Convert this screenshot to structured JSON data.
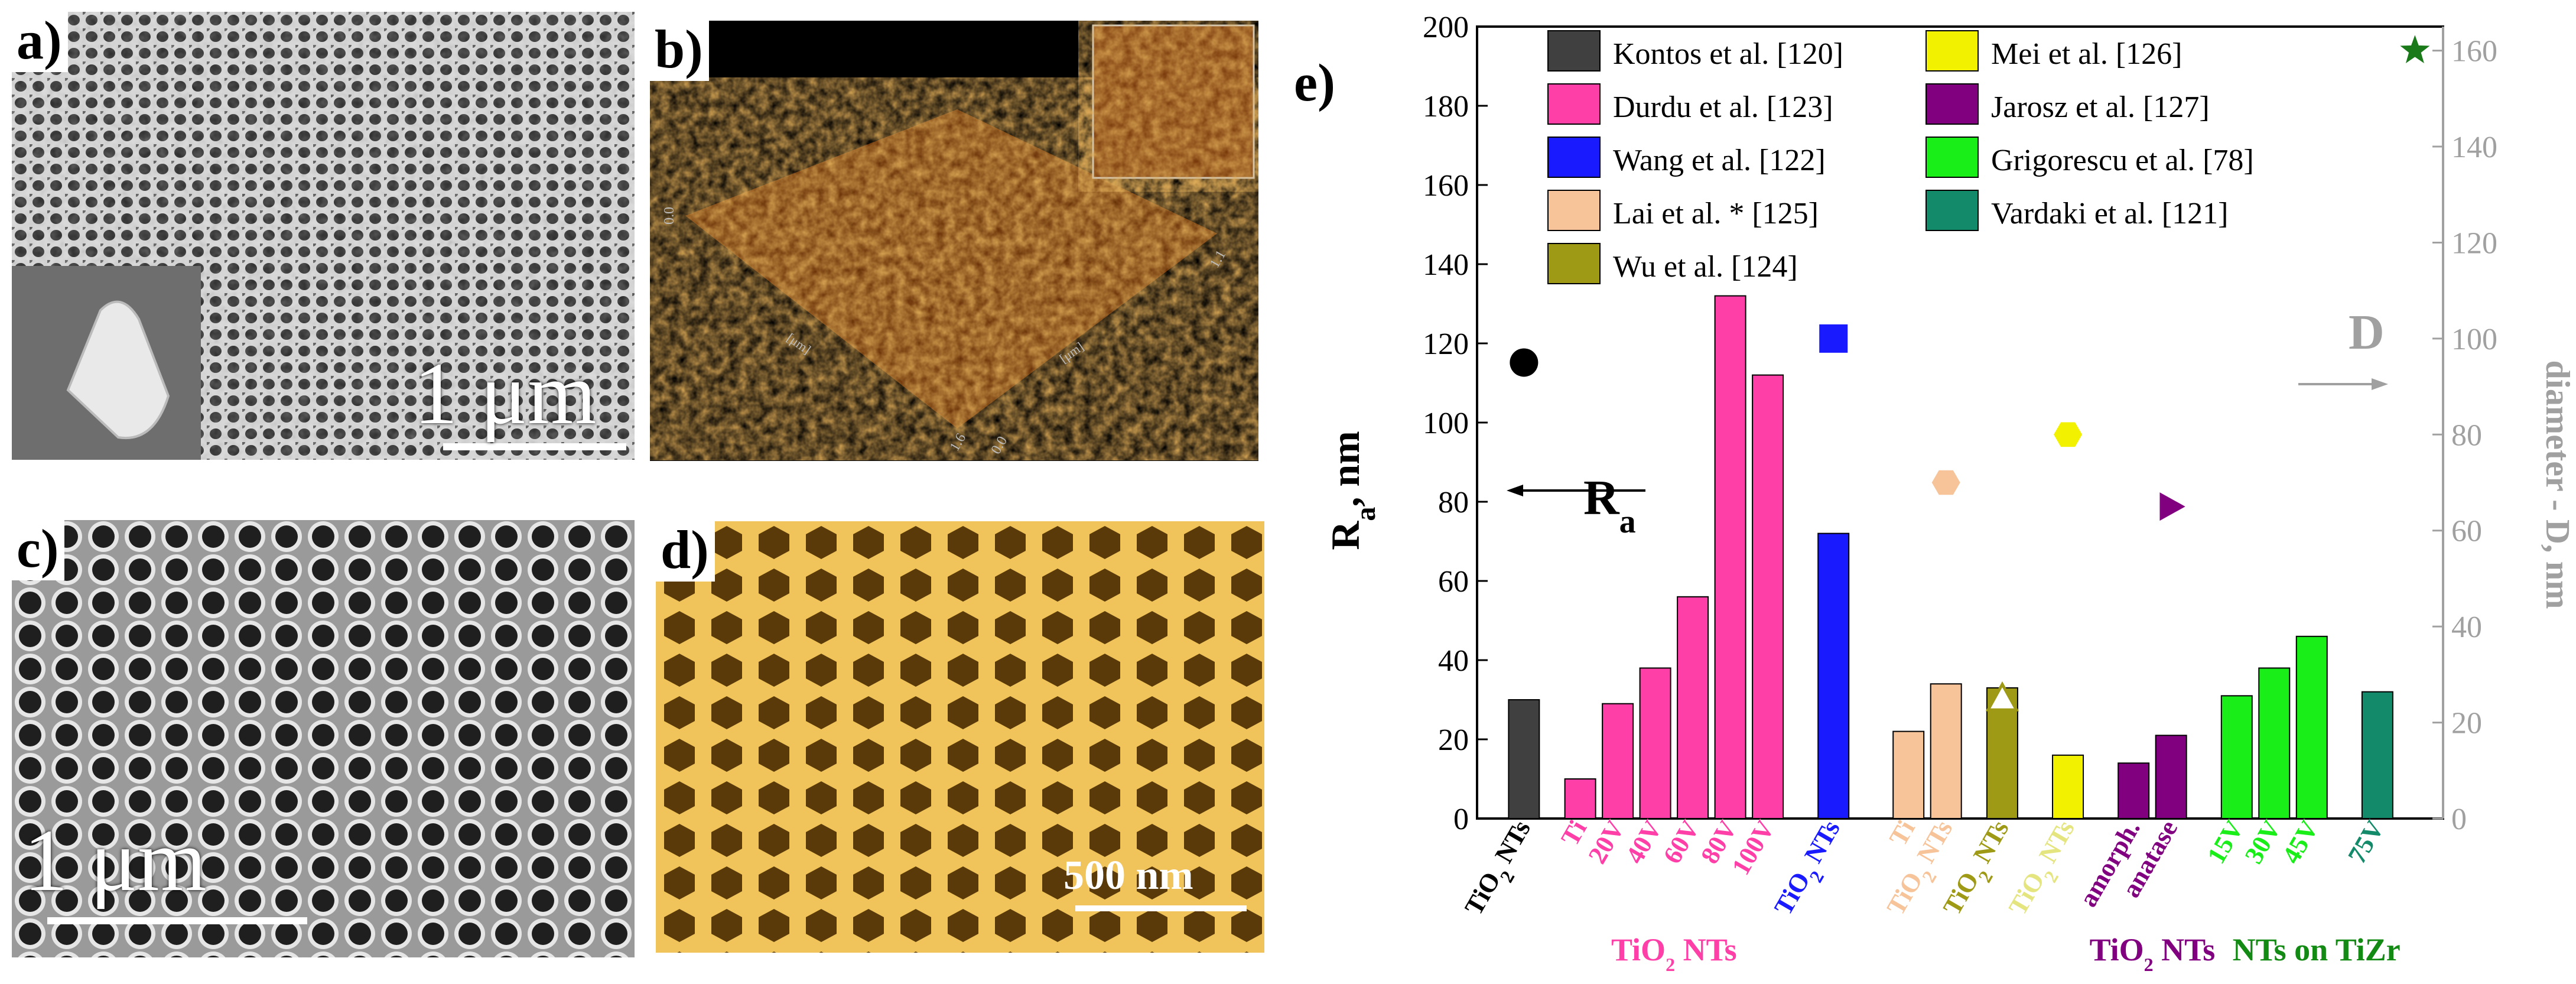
{
  "panels": {
    "a": {
      "label": "a)",
      "scale_text": "1 μm"
    },
    "b": {
      "label": "b)",
      "axis_ticks": [
        "0.0",
        "1.1",
        "1.6",
        "0.0"
      ],
      "axis_unit": "[μm]"
    },
    "c": {
      "label": "c)",
      "scale_text": "1 μm"
    },
    "d": {
      "label": "d)",
      "scale_text": "500 nm"
    }
  },
  "colors": {
    "kontos": "#404040",
    "durdu": "#ff3fa8",
    "wang": "#1a1aff",
    "lai": "#f7c49a",
    "wu": "#9e9a16",
    "mei": "#f2f200",
    "jarosz": "#800080",
    "grigorescu": "#19ee19",
    "vardaki": "#138a6a",
    "star": "#1a7a1a",
    "right_axis": "#a0a0a0"
  },
  "chart_data": {
    "type": "bar",
    "panel_label": "e)",
    "ylabel_left_main": "R",
    "ylabel_left_sub": "a",
    "ylabel_left_suffix": ", nm",
    "ylabel_right": "diameter - D, nm",
    "ylim_left": [
      0,
      200
    ],
    "ylim_right": [
      0,
      165
    ],
    "yticks_left": [
      0,
      20,
      40,
      60,
      80,
      100,
      120,
      140,
      160,
      180,
      200
    ],
    "yticks_right": [
      0,
      20,
      40,
      60,
      80,
      100,
      120,
      140,
      160
    ],
    "annotation_Ra_main": "R",
    "annotation_Ra_sub": "a",
    "annotation_D": "D",
    "legend": [
      {
        "label": "Kontos et al. [120]",
        "color": "#404040"
      },
      {
        "label": "Durdu et al. [123]",
        "color": "#ff3fa8"
      },
      {
        "label": "Wang et al. [122]",
        "color": "#1a1aff"
      },
      {
        "label": "Lai et al. * [125]",
        "color": "#f7c49a"
      },
      {
        "label": "Wu et al. [124]",
        "color": "#9e9a16"
      },
      {
        "label": "Mei et al. [126]",
        "color": "#f2f200"
      },
      {
        "label": "Jarosz et al. [127]",
        "color": "#800080"
      },
      {
        "label": "Grigorescu et al. [78]",
        "color": "#19ee19"
      },
      {
        "label": "Vardaki et al. [121]",
        "color": "#138a6a"
      }
    ],
    "bars": [
      {
        "pos": 1.0,
        "label": "TiO2 NTs",
        "value": 30,
        "color": "#404040",
        "label_color": "#000000"
      },
      {
        "pos": 2.2,
        "label": "Ti",
        "value": 10,
        "color": "#ff3fa8",
        "label_color": "#ff3fa8"
      },
      {
        "pos": 3.0,
        "label": "20V",
        "value": 29,
        "color": "#ff3fa8",
        "label_color": "#ff3fa8"
      },
      {
        "pos": 3.8,
        "label": "40V",
        "value": 38,
        "color": "#ff3fa8",
        "label_color": "#ff3fa8"
      },
      {
        "pos": 4.6,
        "label": "60V",
        "value": 56,
        "color": "#ff3fa8",
        "label_color": "#ff3fa8"
      },
      {
        "pos": 5.4,
        "label": "80V",
        "value": 132,
        "color": "#ff3fa8",
        "label_color": "#ff3fa8"
      },
      {
        "pos": 6.2,
        "label": "100V",
        "value": 112,
        "color": "#ff3fa8",
        "label_color": "#ff3fa8"
      },
      {
        "pos": 7.6,
        "label": "TiO2 NTs",
        "value": 72,
        "color": "#1a1aff",
        "label_color": "#1a1aff"
      },
      {
        "pos": 9.2,
        "label": "Ti",
        "value": 22,
        "color": "#f7c49a",
        "label_color": "#f7c49a"
      },
      {
        "pos": 10.0,
        "label": "TiO2 NTs",
        "value": 34,
        "color": "#f7c49a",
        "label_color": "#f7c49a"
      },
      {
        "pos": 11.2,
        "label": "TiO2 NTs",
        "value": 33,
        "color": "#9e9a16",
        "label_color": "#9e9a16"
      },
      {
        "pos": 12.6,
        "label": "TiO2 NTs",
        "value": 16,
        "color": "#f2f200",
        "label_color": "#e5e580"
      },
      {
        "pos": 14.0,
        "label": "amorph.",
        "value": 14,
        "color": "#800080",
        "label_color": "#800080"
      },
      {
        "pos": 14.8,
        "label": "anatase",
        "value": 21,
        "color": "#800080",
        "label_color": "#800080"
      },
      {
        "pos": 16.2,
        "label": "15V",
        "value": 31,
        "color": "#19ee19",
        "label_color": "#19ee19"
      },
      {
        "pos": 17.0,
        "label": "30V",
        "value": 38,
        "color": "#19ee19",
        "label_color": "#19ee19"
      },
      {
        "pos": 17.8,
        "label": "45V",
        "value": 46,
        "color": "#19ee19",
        "label_color": "#19ee19"
      },
      {
        "pos": 19.2,
        "label": "75V",
        "value": 32,
        "color": "#138a6a",
        "label_color": "#138a6a"
      }
    ],
    "diameter_points": [
      {
        "pos": 1.0,
        "D": 95,
        "shape": "circle",
        "color": "#000000"
      },
      {
        "pos": 7.6,
        "D": 100,
        "shape": "square",
        "color": "#1a1aff"
      },
      {
        "pos": 10.0,
        "D": 70,
        "shape": "hexagon",
        "color": "#f7c49a"
      },
      {
        "pos": 11.2,
        "D": 25,
        "shape": "triangle",
        "color": "#9e9a16"
      },
      {
        "pos": 12.6,
        "D": 80,
        "shape": "hexagon",
        "color": "#f2f200"
      },
      {
        "pos": 14.8,
        "D": 65,
        "shape": "tri-right",
        "color": "#800080"
      },
      {
        "pos": 20.0,
        "D": 160,
        "shape": "star",
        "color": "#1a7a1a"
      }
    ],
    "group_labels": [
      {
        "text": "TiO2 NTs",
        "pos": 4.2,
        "color": "#ff3fa8"
      },
      {
        "text": "TiO2 NTs",
        "pos": 14.4,
        "color": "#800080"
      },
      {
        "text": "NTs on TiZr",
        "pos": 17.9,
        "color": "#138a13"
      }
    ]
  }
}
